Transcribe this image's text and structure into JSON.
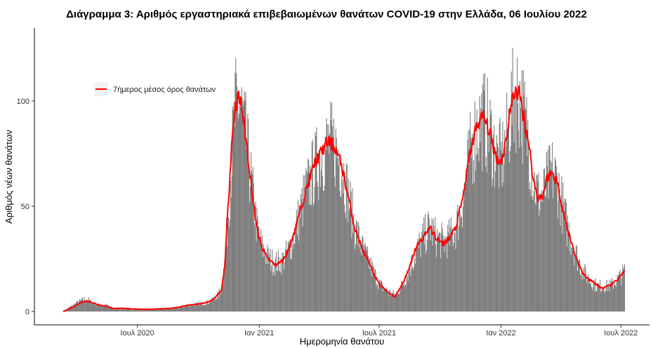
{
  "chart_data": {
    "type": "bar",
    "title": "Διάγραμμα 3: Αριθμός εργαστηριακά επιβεβαιωμένων θανάτων COVID-19 στην Ελλάδα, 06 Ιουλίου 2022",
    "xlabel": "Ημερομηνία θανάτου",
    "ylabel": "Αριθμός νέων θανάτων",
    "x_range": [
      "2020-03-11",
      "2022-07-06"
    ],
    "ylim": [
      -3,
      130
    ],
    "yticks": [
      0,
      50,
      100
    ],
    "xticks": [
      {
        "date": "2020-07-01",
        "label": "Ιουλ 2020"
      },
      {
        "date": "2021-01-01",
        "label": "Ιαν 2021"
      },
      {
        "date": "2021-07-01",
        "label": "Ιουλ 2021"
      },
      {
        "date": "2022-01-01",
        "label": "Ιαν 2022"
      },
      {
        "date": "2022-07-01",
        "label": "Ιουλ 2022"
      }
    ],
    "grid": false,
    "legend_position": "top-left",
    "series": [
      {
        "name": "",
        "kind": "bar",
        "color": "#7f7f7f",
        "description_values_source": "daily deaths (bars)",
        "points": [
          [
            "2020-03-11",
            0
          ],
          [
            "2020-03-25",
            3
          ],
          [
            "2020-04-05",
            5
          ],
          [
            "2020-04-15",
            6
          ],
          [
            "2020-04-25",
            4
          ],
          [
            "2020-05-05",
            3
          ],
          [
            "2020-05-15",
            3
          ],
          [
            "2020-05-25",
            1.5
          ],
          [
            "2020-06-10",
            1.5
          ],
          [
            "2020-06-25",
            1.2
          ],
          [
            "2020-07-15",
            1
          ],
          [
            "2020-08-01",
            1.2
          ],
          [
            "2020-08-20",
            1.5
          ],
          [
            "2020-09-01",
            2
          ],
          [
            "2020-09-15",
            3
          ],
          [
            "2020-09-30",
            3.5
          ],
          [
            "2020-10-10",
            4
          ],
          [
            "2020-10-20",
            5
          ],
          [
            "2020-10-31",
            8
          ],
          [
            "2020-11-05",
            12
          ],
          [
            "2020-11-10",
            25
          ],
          [
            "2020-11-15",
            50
          ],
          [
            "2020-11-20",
            75
          ],
          [
            "2020-11-25",
            95
          ],
          [
            "2020-11-30",
            100
          ],
          [
            "2020-12-05",
            95
          ],
          [
            "2020-12-12",
            80
          ],
          [
            "2020-12-20",
            60
          ],
          [
            "2020-12-28",
            40
          ],
          [
            "2021-01-05",
            30
          ],
          [
            "2021-01-15",
            25
          ],
          [
            "2021-01-25",
            23
          ],
          [
            "2021-02-05",
            24
          ],
          [
            "2021-02-15",
            30
          ],
          [
            "2021-02-25",
            40
          ],
          [
            "2021-03-10",
            55
          ],
          [
            "2021-03-25",
            68
          ],
          [
            "2021-04-05",
            75
          ],
          [
            "2021-04-15",
            80
          ],
          [
            "2021-04-25",
            78
          ],
          [
            "2021-05-05",
            70
          ],
          [
            "2021-05-15",
            55
          ],
          [
            "2021-05-25",
            40
          ],
          [
            "2021-06-05",
            30
          ],
          [
            "2021-06-20",
            20
          ],
          [
            "2021-07-01",
            13
          ],
          [
            "2021-07-15",
            9
          ],
          [
            "2021-07-25",
            8
          ],
          [
            "2021-08-05",
            13
          ],
          [
            "2021-08-15",
            20
          ],
          [
            "2021-08-25",
            28
          ],
          [
            "2021-09-05",
            35
          ],
          [
            "2021-09-15",
            40
          ],
          [
            "2021-09-25",
            35
          ],
          [
            "2021-10-05",
            33
          ],
          [
            "2021-10-15",
            35
          ],
          [
            "2021-10-25",
            40
          ],
          [
            "2021-11-05",
            55
          ],
          [
            "2021-11-15",
            75
          ],
          [
            "2021-11-25",
            88
          ],
          [
            "2021-12-05",
            92
          ],
          [
            "2021-12-15",
            85
          ],
          [
            "2021-12-25",
            73
          ],
          [
            "2022-01-01",
            72
          ],
          [
            "2022-01-08",
            80
          ],
          [
            "2022-01-15",
            95
          ],
          [
            "2022-01-22",
            103
          ],
          [
            "2022-01-29",
            102
          ],
          [
            "2022-02-05",
            90
          ],
          [
            "2022-02-12",
            80
          ],
          [
            "2022-02-19",
            62
          ],
          [
            "2022-02-26",
            55
          ],
          [
            "2022-03-05",
            55
          ],
          [
            "2022-03-12",
            62
          ],
          [
            "2022-03-19",
            66
          ],
          [
            "2022-03-26",
            62
          ],
          [
            "2022-04-02",
            52
          ],
          [
            "2022-04-09",
            42
          ],
          [
            "2022-04-16",
            35
          ],
          [
            "2022-04-23",
            28
          ],
          [
            "2022-04-30",
            22
          ],
          [
            "2022-05-07",
            18
          ],
          [
            "2022-05-14",
            15
          ],
          [
            "2022-05-21",
            13
          ],
          [
            "2022-05-28",
            12
          ],
          [
            "2022-06-04",
            12
          ],
          [
            "2022-06-11",
            12
          ],
          [
            "2022-06-18",
            13
          ],
          [
            "2022-06-25",
            15
          ],
          [
            "2022-07-06",
            19
          ]
        ]
      },
      {
        "name": "7ήμερος μέσος όρος θανάτων",
        "kind": "line",
        "color": "#ff0000",
        "points": [
          [
            "2020-03-11",
            0
          ],
          [
            "2020-03-25",
            2
          ],
          [
            "2020-04-05",
            4
          ],
          [
            "2020-04-15",
            5
          ],
          [
            "2020-04-25",
            4
          ],
          [
            "2020-05-05",
            3
          ],
          [
            "2020-05-15",
            2.5
          ],
          [
            "2020-05-25",
            1.5
          ],
          [
            "2020-06-10",
            1.5
          ],
          [
            "2020-06-25",
            1.2
          ],
          [
            "2020-07-15",
            1
          ],
          [
            "2020-08-01",
            1.2
          ],
          [
            "2020-08-20",
            1.5
          ],
          [
            "2020-09-01",
            2
          ],
          [
            "2020-09-15",
            3
          ],
          [
            "2020-09-30",
            3.5
          ],
          [
            "2020-10-10",
            4
          ],
          [
            "2020-10-20",
            5
          ],
          [
            "2020-10-31",
            8
          ],
          [
            "2020-11-05",
            10
          ],
          [
            "2020-11-10",
            22
          ],
          [
            "2020-11-15",
            50
          ],
          [
            "2020-11-20",
            78
          ],
          [
            "2020-11-25",
            96
          ],
          [
            "2020-11-30",
            102
          ],
          [
            "2020-12-05",
            98
          ],
          [
            "2020-12-12",
            82
          ],
          [
            "2020-12-20",
            60
          ],
          [
            "2020-12-28",
            40
          ],
          [
            "2021-01-05",
            30
          ],
          [
            "2021-01-15",
            25
          ],
          [
            "2021-01-25",
            22
          ],
          [
            "2021-02-05",
            24
          ],
          [
            "2021-02-15",
            30
          ],
          [
            "2021-02-25",
            40
          ],
          [
            "2021-03-10",
            55
          ],
          [
            "2021-03-25",
            70
          ],
          [
            "2021-04-05",
            76
          ],
          [
            "2021-04-15",
            81
          ],
          [
            "2021-04-25",
            78
          ],
          [
            "2021-05-05",
            70
          ],
          [
            "2021-05-15",
            55
          ],
          [
            "2021-05-25",
            40
          ],
          [
            "2021-06-05",
            30
          ],
          [
            "2021-06-20",
            20
          ],
          [
            "2021-07-01",
            13
          ],
          [
            "2021-07-15",
            9
          ],
          [
            "2021-07-25",
            7
          ],
          [
            "2021-08-05",
            13
          ],
          [
            "2021-08-15",
            20
          ],
          [
            "2021-08-25",
            30
          ],
          [
            "2021-09-05",
            35
          ],
          [
            "2021-09-15",
            40
          ],
          [
            "2021-09-25",
            35
          ],
          [
            "2021-10-05",
            32
          ],
          [
            "2021-10-15",
            35
          ],
          [
            "2021-10-25",
            40
          ],
          [
            "2021-11-05",
            55
          ],
          [
            "2021-11-15",
            75
          ],
          [
            "2021-11-25",
            88
          ],
          [
            "2021-12-05",
            93
          ],
          [
            "2021-12-15",
            85
          ],
          [
            "2021-12-25",
            73
          ],
          [
            "2022-01-01",
            71
          ],
          [
            "2022-01-08",
            80
          ],
          [
            "2022-01-15",
            96
          ],
          [
            "2022-01-22",
            105
          ],
          [
            "2022-01-29",
            103
          ],
          [
            "2022-02-05",
            91
          ],
          [
            "2022-02-12",
            80
          ],
          [
            "2022-02-19",
            62
          ],
          [
            "2022-02-26",
            54
          ],
          [
            "2022-03-05",
            55
          ],
          [
            "2022-03-12",
            64
          ],
          [
            "2022-03-19",
            66
          ],
          [
            "2022-03-26",
            62
          ],
          [
            "2022-04-02",
            52
          ],
          [
            "2022-04-09",
            42
          ],
          [
            "2022-04-16",
            34
          ],
          [
            "2022-04-23",
            27
          ],
          [
            "2022-04-30",
            21
          ],
          [
            "2022-05-07",
            17
          ],
          [
            "2022-05-14",
            15
          ],
          [
            "2022-05-21",
            14
          ],
          [
            "2022-05-28",
            12
          ],
          [
            "2022-06-04",
            11
          ],
          [
            "2022-06-11",
            12
          ],
          [
            "2022-06-18",
            13
          ],
          [
            "2022-06-25",
            15
          ],
          [
            "2022-07-06",
            19
          ]
        ]
      }
    ]
  }
}
